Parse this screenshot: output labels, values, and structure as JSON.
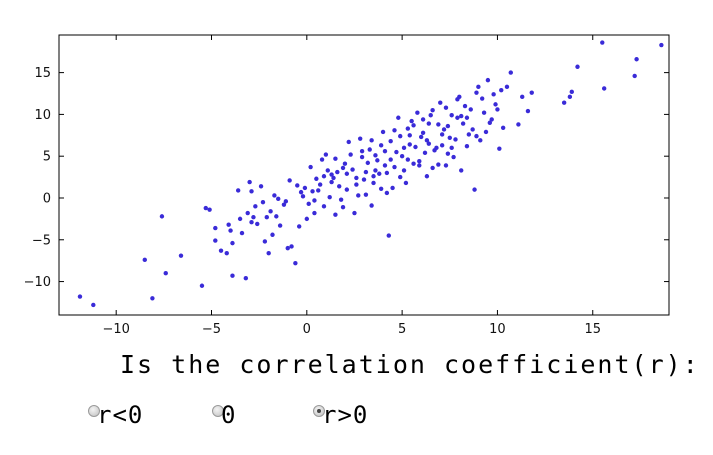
{
  "chart_data": {
    "type": "scatter",
    "xlim": [
      -13,
      19
    ],
    "ylim": [
      -14,
      19.5
    ],
    "xticks": [
      -10,
      -5,
      0,
      5,
      10,
      15
    ],
    "yticks": [
      -10,
      -5,
      0,
      5,
      10,
      15
    ],
    "xtick_labels": [
      "−10",
      "−5",
      "0",
      "5",
      "10",
      "15"
    ],
    "ytick_labels": [
      "−10",
      "−5",
      "0",
      "5",
      "10",
      "15"
    ],
    "marker_color": "#3a2bd8",
    "grid": false,
    "points": [
      [
        -11.9,
        -11.8
      ],
      [
        -11.2,
        -12.8
      ],
      [
        -8.1,
        -12.0
      ],
      [
        -5.5,
        -10.5
      ],
      [
        -3.9,
        -9.3
      ],
      [
        -3.2,
        -9.6
      ],
      [
        -8.5,
        -7.4
      ],
      [
        -7.4,
        -9.0
      ],
      [
        -6.6,
        -6.9
      ],
      [
        -7.6,
        -2.2
      ],
      [
        -5.3,
        -1.2
      ],
      [
        -5.1,
        -1.4
      ],
      [
        -4.8,
        -5.1
      ],
      [
        -4.5,
        -6.3
      ],
      [
        -4.2,
        -6.6
      ],
      [
        -4.1,
        -3.2
      ],
      [
        -3.9,
        -5.4
      ],
      [
        -3.4,
        -4.2
      ],
      [
        -3.1,
        -1.8
      ],
      [
        -2.9,
        -2.9
      ],
      [
        -2.8,
        -2.3
      ],
      [
        -2.6,
        -3.1
      ],
      [
        -2.4,
        1.4
      ],
      [
        -2.9,
        0.8
      ],
      [
        -2.2,
        -5.2
      ],
      [
        -2.0,
        -6.6
      ],
      [
        -1.8,
        -4.4
      ],
      [
        -1.6,
        -2.2
      ],
      [
        -1.4,
        -3.3
      ],
      [
        -1.2,
        -0.8
      ],
      [
        -1.0,
        -6.0
      ],
      [
        -0.8,
        -5.8
      ],
      [
        -0.6,
        -7.8
      ],
      [
        -0.4,
        -3.4
      ],
      [
        -0.3,
        0.7
      ],
      [
        -0.1,
        1.2
      ],
      [
        0.1,
        -0.7
      ],
      [
        0.3,
        0.8
      ],
      [
        0.5,
        2.3
      ],
      [
        0.7,
        1.6
      ],
      [
        0.9,
        -1.0
      ],
      [
        1.1,
        3.3
      ],
      [
        1.3,
        2.8
      ],
      [
        1.5,
        4.7
      ],
      [
        1.7,
        1.4
      ],
      [
        1.9,
        3.6
      ],
      [
        2.1,
        2.9
      ],
      [
        2.3,
        5.2
      ],
      [
        2.5,
        -1.8
      ],
      [
        2.7,
        0.3
      ],
      [
        2.9,
        4.9
      ],
      [
        3.1,
        3.1
      ],
      [
        3.3,
        5.8
      ],
      [
        3.5,
        2.6
      ],
      [
        3.7,
        4.5
      ],
      [
        3.9,
        6.3
      ],
      [
        4.1,
        3.9
      ],
      [
        4.3,
        -4.5
      ],
      [
        4.5,
        1.2
      ],
      [
        4.7,
        5.5
      ],
      [
        4.9,
        7.4
      ],
      [
        5.1,
        3.3
      ],
      [
        5.3,
        8.3
      ],
      [
        5.5,
        9.2
      ],
      [
        5.7,
        6.1
      ],
      [
        5.9,
        4.4
      ],
      [
        6.1,
        7.8
      ],
      [
        6.3,
        2.6
      ],
      [
        6.5,
        9.9
      ],
      [
        6.7,
        5.7
      ],
      [
        6.9,
        8.8
      ],
      [
        7.1,
        6.3
      ],
      [
        7.3,
        10.8
      ],
      [
        7.5,
        7.2
      ],
      [
        7.7,
        4.9
      ],
      [
        7.9,
        9.6
      ],
      [
        8.1,
        3.3
      ],
      [
        8.3,
        11.0
      ],
      [
        8.5,
        7.6
      ],
      [
        8.7,
        8.2
      ],
      [
        8.9,
        12.6
      ],
      [
        9.1,
        6.9
      ],
      [
        9.3,
        10.2
      ],
      [
        9.5,
        14.1
      ],
      [
        9.7,
        9.4
      ],
      [
        9.9,
        11.2
      ],
      [
        10.1,
        5.9
      ],
      [
        10.3,
        8.4
      ],
      [
        10.5,
        13.3
      ],
      [
        10.7,
        15.0
      ],
      [
        11.1,
        8.8
      ],
      [
        11.3,
        12.1
      ],
      [
        11.6,
        10.4
      ],
      [
        -1.5,
        -0.1
      ],
      [
        -0.9,
        2.1
      ],
      [
        0.2,
        3.7
      ],
      [
        0.4,
        -1.8
      ],
      [
        0.6,
        0.9
      ],
      [
        0.8,
        4.6
      ],
      [
        1.0,
        5.2
      ],
      [
        1.2,
        0.1
      ],
      [
        1.4,
        2.4
      ],
      [
        1.6,
        3.1
      ],
      [
        1.8,
        -0.2
      ],
      [
        2.0,
        4.1
      ],
      [
        2.2,
        6.7
      ],
      [
        2.4,
        3.4
      ],
      [
        2.6,
        1.6
      ],
      [
        2.8,
        7.1
      ],
      [
        3.0,
        2.2
      ],
      [
        3.2,
        4.2
      ],
      [
        3.4,
        -0.9
      ],
      [
        3.6,
        5.1
      ],
      [
        3.8,
        2.9
      ],
      [
        4.0,
        7.9
      ],
      [
        4.2,
        0.6
      ],
      [
        4.4,
        6.8
      ],
      [
        4.6,
        3.7
      ],
      [
        4.8,
        9.6
      ],
      [
        5.0,
        5.0
      ],
      [
        5.2,
        1.8
      ],
      [
        5.4,
        6.4
      ],
      [
        5.6,
        4.1
      ],
      [
        5.8,
        10.2
      ],
      [
        6.0,
        7.3
      ],
      [
        6.2,
        5.4
      ],
      [
        6.4,
        8.9
      ],
      [
        6.6,
        3.6
      ],
      [
        6.8,
        6.0
      ],
      [
        7.0,
        11.4
      ],
      [
        7.2,
        8.2
      ],
      [
        7.4,
        5.3
      ],
      [
        7.6,
        9.9
      ],
      [
        7.8,
        7.0
      ],
      [
        8.0,
        12.1
      ],
      [
        8.2,
        8.9
      ],
      [
        8.4,
        6.2
      ],
      [
        8.6,
        10.6
      ],
      [
        8.8,
        1.0
      ],
      [
        9.0,
        13.3
      ],
      [
        9.2,
        11.9
      ],
      [
        9.4,
        7.9
      ],
      [
        9.6,
        9.0
      ],
      [
        9.8,
        12.4
      ],
      [
        10.0,
        10.6
      ],
      [
        -3.6,
        0.9
      ],
      [
        -3.0,
        1.9
      ],
      [
        -2.7,
        -1.0
      ],
      [
        -2.1,
        -2.3
      ],
      [
        -1.7,
        0.3
      ],
      [
        -0.5,
        1.5
      ],
      [
        0.0,
        -2.5
      ],
      [
        1.9,
        -1.1
      ],
      [
        2.9,
        5.6
      ],
      [
        3.4,
        6.9
      ],
      [
        3.9,
        1.1
      ],
      [
        4.4,
        4.6
      ],
      [
        4.9,
        2.5
      ],
      [
        5.4,
        7.5
      ],
      [
        5.9,
        3.9
      ],
      [
        6.4,
        6.5
      ],
      [
        6.9,
        4.0
      ],
      [
        7.4,
        8.6
      ],
      [
        7.9,
        11.8
      ],
      [
        8.4,
        9.6
      ],
      [
        8.9,
        7.4
      ],
      [
        0.9,
        2.6
      ],
      [
        1.5,
        -2.0
      ],
      [
        2.1,
        1.0
      ],
      [
        3.1,
        0.4
      ],
      [
        3.6,
        3.3
      ],
      [
        4.1,
        5.6
      ],
      [
        4.6,
        8.1
      ],
      [
        5.1,
        6.0
      ],
      [
        5.6,
        8.7
      ],
      [
        6.1,
        9.4
      ],
      [
        6.6,
        10.5
      ],
      [
        7.1,
        7.6
      ],
      [
        7.6,
        6.0
      ],
      [
        8.1,
        9.8
      ],
      [
        -4.8,
        -3.6
      ],
      [
        -4.0,
        -3.9
      ],
      [
        -3.5,
        -2.5
      ],
      [
        -2.3,
        -0.5
      ],
      [
        -1.9,
        -1.6
      ],
      [
        -1.1,
        -0.4
      ],
      [
        -0.2,
        0.2
      ],
      [
        0.4,
        -0.3
      ],
      [
        1.3,
        1.9
      ],
      [
        2.6,
        2.4
      ],
      [
        3.5,
        1.8
      ],
      [
        4.2,
        3.0
      ],
      [
        5.3,
        4.6
      ],
      [
        6.3,
        6.9
      ],
      [
        7.3,
        3.9
      ],
      [
        10.2,
        12.9
      ],
      [
        11.8,
        12.6
      ],
      [
        13.5,
        11.4
      ],
      [
        13.8,
        12.1
      ],
      [
        13.9,
        12.7
      ],
      [
        14.2,
        15.7
      ],
      [
        15.5,
        18.6
      ],
      [
        15.6,
        13.1
      ],
      [
        17.2,
        14.6
      ],
      [
        17.3,
        16.6
      ],
      [
        18.6,
        18.3
      ]
    ]
  },
  "question": {
    "text": "Is  the correlation coefficient(r):"
  },
  "options": [
    {
      "label": "r<0",
      "selected": false
    },
    {
      "label": "0",
      "selected": false
    },
    {
      "label": "r>0",
      "selected": true
    }
  ]
}
